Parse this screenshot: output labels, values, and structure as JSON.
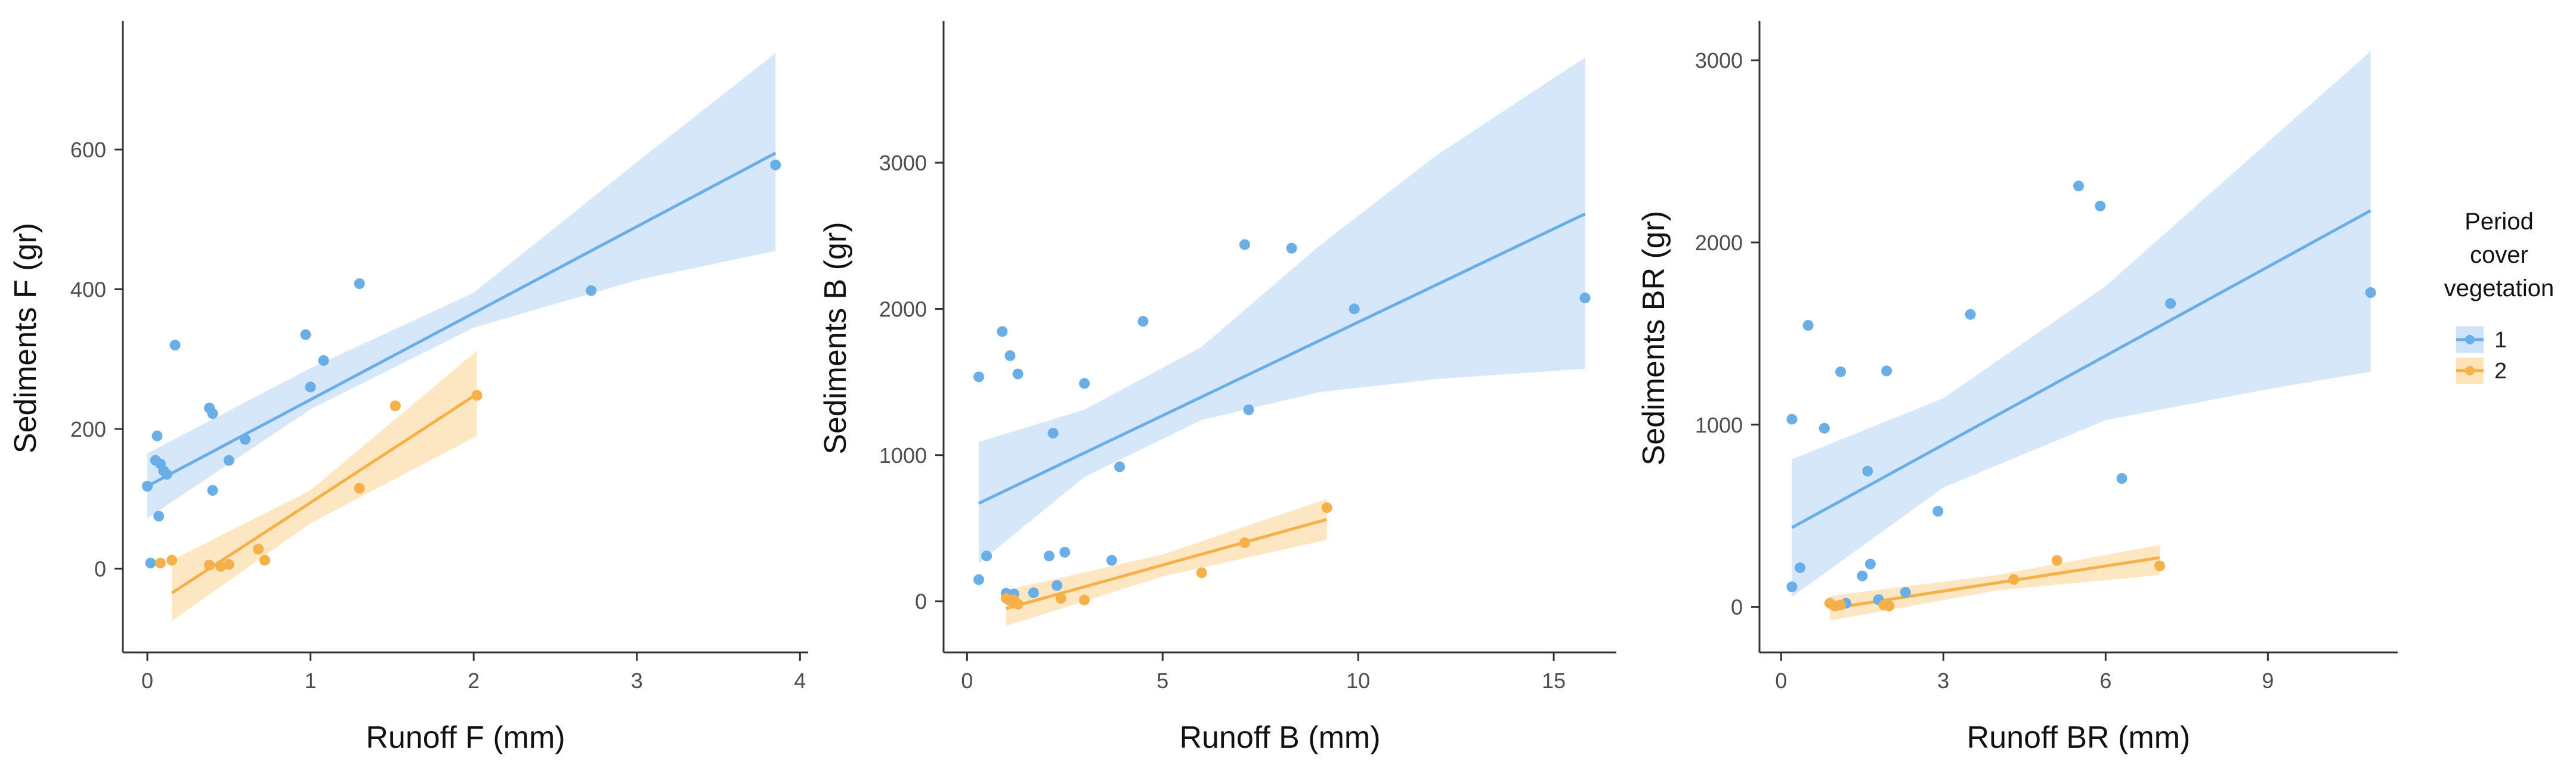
{
  "colors": {
    "group1": "#6aaee8",
    "group1_band": "#cfe3f8",
    "group2": "#f5b04a",
    "group2_band": "#fde3b8"
  },
  "legend": {
    "title_lines": [
      "Period",
      "cover",
      "vegetation"
    ],
    "entries": [
      {
        "label": "1",
        "color": "#6aaee8"
      },
      {
        "label": "2",
        "color": "#f5b04a"
      }
    ]
  },
  "chart_data": [
    {
      "type": "scatter",
      "xlabel": "Runoff F (mm)",
      "ylabel": "Sediments F (gr)",
      "xlim": [
        -0.15,
        4.05
      ],
      "ylim": [
        -120,
        780
      ],
      "xticks": [
        0,
        1,
        2,
        3,
        4
      ],
      "yticks": [
        0,
        200,
        400,
        600
      ],
      "series": [
        {
          "name": "1",
          "points": [
            [
              0.0,
              118
            ],
            [
              0.02,
              8
            ],
            [
              0.05,
              155
            ],
            [
              0.06,
              190
            ],
            [
              0.07,
              75
            ],
            [
              0.08,
              150
            ],
            [
              0.1,
              140
            ],
            [
              0.12,
              135
            ],
            [
              0.17,
              320
            ],
            [
              0.38,
              230
            ],
            [
              0.4,
              222
            ],
            [
              0.4,
              112
            ],
            [
              0.5,
              155
            ],
            [
              0.6,
              185
            ],
            [
              0.97,
              335
            ],
            [
              1.0,
              260
            ],
            [
              1.08,
              298
            ],
            [
              1.3,
              408
            ],
            [
              2.72,
              398
            ],
            [
              3.85,
              578
            ]
          ],
          "fit": {
            "x": [
              0.0,
              3.85
            ],
            "y": [
              118,
              595
            ]
          },
          "band": {
            "x": [
              0.0,
              1.0,
              2.0,
              3.0,
              3.85
            ],
            "lower": [
              72,
              228,
              345,
              413,
              455
            ],
            "upper": [
              165,
              287,
              395,
              582,
              738
            ]
          }
        },
        {
          "name": "2",
          "points": [
            [
              0.08,
              8
            ],
            [
              0.15,
              12
            ],
            [
              0.38,
              5
            ],
            [
              0.45,
              3
            ],
            [
              0.5,
              6
            ],
            [
              0.68,
              28
            ],
            [
              0.72,
              12
            ],
            [
              1.3,
              115
            ],
            [
              1.52,
              233
            ],
            [
              2.02,
              248
            ]
          ],
          "fit": {
            "x": [
              0.15,
              2.02
            ],
            "y": [
              -35,
              250
            ]
          },
          "band": {
            "x": [
              0.15,
              1.0,
              2.02
            ],
            "lower": [
              -75,
              65,
              190
            ],
            "upper": [
              12,
              112,
              312
            ]
          }
        }
      ]
    },
    {
      "type": "scatter",
      "xlabel": "Runoff B (mm)",
      "ylabel": "Sediments B (gr)",
      "xlim": [
        -0.6,
        16.6
      ],
      "ylim": [
        -350,
        3950
      ],
      "xticks": [
        0,
        5,
        10,
        15
      ],
      "yticks": [
        0,
        1000,
        2000,
        3000
      ],
      "series": [
        {
          "name": "1",
          "points": [
            [
              0.3,
              1535
            ],
            [
              0.3,
              148
            ],
            [
              0.5,
              310
            ],
            [
              0.9,
              1845
            ],
            [
              1.0,
              55
            ],
            [
              1.1,
              1680
            ],
            [
              1.2,
              50
            ],
            [
              1.3,
              1555
            ],
            [
              1.7,
              58
            ],
            [
              2.1,
              310
            ],
            [
              2.2,
              1150
            ],
            [
              2.3,
              108
            ],
            [
              2.5,
              335
            ],
            [
              3.0,
              1490
            ],
            [
              3.7,
              280
            ],
            [
              3.9,
              920
            ],
            [
              4.5,
              1915
            ],
            [
              7.1,
              2440
            ],
            [
              7.2,
              1310
            ],
            [
              8.3,
              2415
            ],
            [
              9.9,
              2000
            ],
            [
              15.8,
              2075
            ]
          ],
          "fit": {
            "x": [
              0.3,
              15.8
            ],
            "y": [
              670,
              2650
            ]
          },
          "band": {
            "x": [
              0.3,
              3.0,
              6.0,
              9.0,
              12.0,
              15.8
            ],
            "lower": [
              260,
              850,
              1240,
              1430,
              1520,
              1590
            ],
            "upper": [
              1090,
              1310,
              1740,
              2430,
              3050,
              3720
            ]
          }
        },
        {
          "name": "2",
          "points": [
            [
              1.0,
              20
            ],
            [
              1.1,
              5
            ],
            [
              1.2,
              10
            ],
            [
              1.3,
              -20
            ],
            [
              2.4,
              20
            ],
            [
              3.0,
              8
            ],
            [
              6.0,
              195
            ],
            [
              7.1,
              400
            ],
            [
              9.2,
              640
            ]
          ],
          "fit": {
            "x": [
              1.0,
              9.2
            ],
            "y": [
              -50,
              560
            ]
          },
          "band": {
            "x": [
              1.0,
              5.0,
              9.2
            ],
            "lower": [
              -170,
              170,
              420
            ],
            "upper": [
              75,
              320,
              700
            ]
          }
        }
      ]
    },
    {
      "type": "scatter",
      "xlabel": "Runoff BR (mm)",
      "ylabel": "Sediments BR (gr)",
      "xlim": [
        -0.4,
        11.4
      ],
      "ylim": [
        -250,
        3200
      ],
      "xticks": [
        0,
        3,
        6,
        9
      ],
      "yticks": [
        0,
        1000,
        2000,
        3000
      ],
      "series": [
        {
          "name": "1",
          "points": [
            [
              0.2,
              1030
            ],
            [
              0.2,
              110
            ],
            [
              0.35,
              215
            ],
            [
              0.5,
              1545
            ],
            [
              0.8,
              980
            ],
            [
              1.1,
              1290
            ],
            [
              1.2,
              20
            ],
            [
              1.5,
              170
            ],
            [
              1.6,
              745
            ],
            [
              1.65,
              235
            ],
            [
              1.8,
              40
            ],
            [
              1.95,
              1295
            ],
            [
              2.3,
              80
            ],
            [
              2.9,
              525
            ],
            [
              3.5,
              1605
            ],
            [
              5.5,
              2310
            ],
            [
              5.9,
              2200
            ],
            [
              6.3,
              705
            ],
            [
              7.2,
              1665
            ],
            [
              10.9,
              1725
            ]
          ],
          "fit": {
            "x": [
              0.2,
              10.9
            ],
            "y": [
              435,
              2175
            ]
          },
          "band": {
            "x": [
              0.2,
              3.0,
              6.0,
              9.0,
              10.9
            ],
            "lower": [
              55,
              655,
              1025,
              1195,
              1290
            ],
            "upper": [
              810,
              1145,
              1760,
              2550,
              3050
            ]
          }
        },
        {
          "name": "2",
          "points": [
            [
              0.9,
              20
            ],
            [
              1.0,
              5
            ],
            [
              1.1,
              10
            ],
            [
              1.9,
              10
            ],
            [
              2.0,
              5
            ],
            [
              4.3,
              150
            ],
            [
              5.1,
              255
            ],
            [
              7.0,
              225
            ]
          ],
          "fit": {
            "x": [
              0.9,
              7.0
            ],
            "y": [
              -10,
              270
            ]
          },
          "band": {
            "x": [
              0.9,
              4.0,
              7.0
            ],
            "lower": [
              -75,
              90,
              175
            ],
            "upper": [
              60,
              175,
              340
            ]
          }
        }
      ]
    }
  ]
}
